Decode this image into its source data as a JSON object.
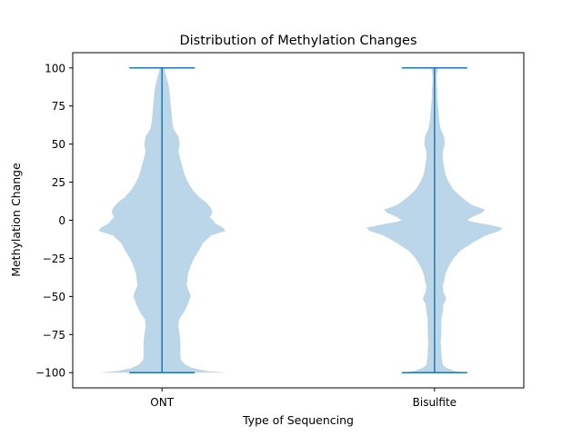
{
  "chart_data": {
    "type": "violin",
    "title": "Distribution of Methylation Changes",
    "xlabel": "Type of Sequencing",
    "ylabel": "Methylation Change",
    "categories": [
      "ONT",
      "Bisulfite"
    ],
    "ylim": [
      -110,
      110
    ],
    "yticks": [
      -100,
      -75,
      -50,
      -25,
      0,
      25,
      50,
      75,
      100
    ],
    "ytick_labels": [
      "−100",
      "−75",
      "−50",
      "−25",
      "0",
      "25",
      "50",
      "75",
      "100"
    ],
    "grid": false,
    "colors": {
      "fill": "#1f77b4",
      "fill_opacity": 0.3,
      "line": "#1f77b4"
    },
    "series": [
      {
        "category": "ONT",
        "min": -100,
        "max": 100,
        "density": [
          [
            -100,
            0.95
          ],
          [
            -99,
            0.65
          ],
          [
            -97,
            0.45
          ],
          [
            -95,
            0.35
          ],
          [
            -92,
            0.28
          ],
          [
            -90,
            0.27
          ],
          [
            -85,
            0.27
          ],
          [
            -80,
            0.27
          ],
          [
            -75,
            0.26
          ],
          [
            -70,
            0.24
          ],
          [
            -65,
            0.25
          ],
          [
            -62,
            0.3
          ],
          [
            -58,
            0.35
          ],
          [
            -55,
            0.38
          ],
          [
            -52,
            0.4
          ],
          [
            -50,
            0.42
          ],
          [
            -47,
            0.4
          ],
          [
            -43,
            0.36
          ],
          [
            -40,
            0.37
          ],
          [
            -35,
            0.38
          ],
          [
            -30,
            0.42
          ],
          [
            -25,
            0.47
          ],
          [
            -20,
            0.54
          ],
          [
            -15,
            0.6
          ],
          [
            -10,
            0.72
          ],
          [
            -7,
            0.93
          ],
          [
            -5,
            0.9
          ],
          [
            -2,
            0.78
          ],
          [
            0,
            0.75
          ],
          [
            2,
            0.7
          ],
          [
            5,
            0.74
          ],
          [
            8,
            0.72
          ],
          [
            12,
            0.64
          ],
          [
            15,
            0.55
          ],
          [
            20,
            0.45
          ],
          [
            25,
            0.38
          ],
          [
            30,
            0.33
          ],
          [
            35,
            0.3
          ],
          [
            40,
            0.27
          ],
          [
            45,
            0.24
          ],
          [
            50,
            0.26
          ],
          [
            55,
            0.24
          ],
          [
            60,
            0.17
          ],
          [
            65,
            0.15
          ],
          [
            70,
            0.14
          ],
          [
            75,
            0.13
          ],
          [
            80,
            0.12
          ],
          [
            85,
            0.11
          ],
          [
            90,
            0.09
          ],
          [
            95,
            0.06
          ],
          [
            98,
            0.04
          ],
          [
            100,
            0.03
          ]
        ]
      },
      {
        "category": "Bisulfite",
        "min": -100,
        "max": 100,
        "density": [
          [
            -100,
            0.45
          ],
          [
            -99,
            0.3
          ],
          [
            -97,
            0.18
          ],
          [
            -95,
            0.12
          ],
          [
            -92,
            0.11
          ],
          [
            -88,
            0.1
          ],
          [
            -85,
            0.1
          ],
          [
            -80,
            0.09
          ],
          [
            -75,
            0.1
          ],
          [
            -70,
            0.1
          ],
          [
            -65,
            0.1
          ],
          [
            -60,
            0.12
          ],
          [
            -55,
            0.13
          ],
          [
            -52,
            0.17
          ],
          [
            -50,
            0.16
          ],
          [
            -47,
            0.13
          ],
          [
            -43,
            0.12
          ],
          [
            -40,
            0.14
          ],
          [
            -35,
            0.16
          ],
          [
            -30,
            0.21
          ],
          [
            -25,
            0.28
          ],
          [
            -20,
            0.38
          ],
          [
            -15,
            0.55
          ],
          [
            -10,
            0.75
          ],
          [
            -7,
            0.95
          ],
          [
            -5,
            1.0
          ],
          [
            -3,
            0.8
          ],
          [
            -1,
            0.55
          ],
          [
            0,
            0.48
          ],
          [
            2,
            0.55
          ],
          [
            5,
            0.7
          ],
          [
            7,
            0.74
          ],
          [
            10,
            0.55
          ],
          [
            15,
            0.4
          ],
          [
            20,
            0.28
          ],
          [
            25,
            0.21
          ],
          [
            30,
            0.16
          ],
          [
            35,
            0.14
          ],
          [
            40,
            0.12
          ],
          [
            45,
            0.12
          ],
          [
            50,
            0.15
          ],
          [
            55,
            0.14
          ],
          [
            60,
            0.09
          ],
          [
            65,
            0.07
          ],
          [
            70,
            0.06
          ],
          [
            75,
            0.05
          ],
          [
            80,
            0.04
          ],
          [
            85,
            0.04
          ],
          [
            90,
            0.03
          ],
          [
            95,
            0.03
          ],
          [
            98,
            0.04
          ],
          [
            100,
            0.05
          ]
        ]
      }
    ]
  }
}
